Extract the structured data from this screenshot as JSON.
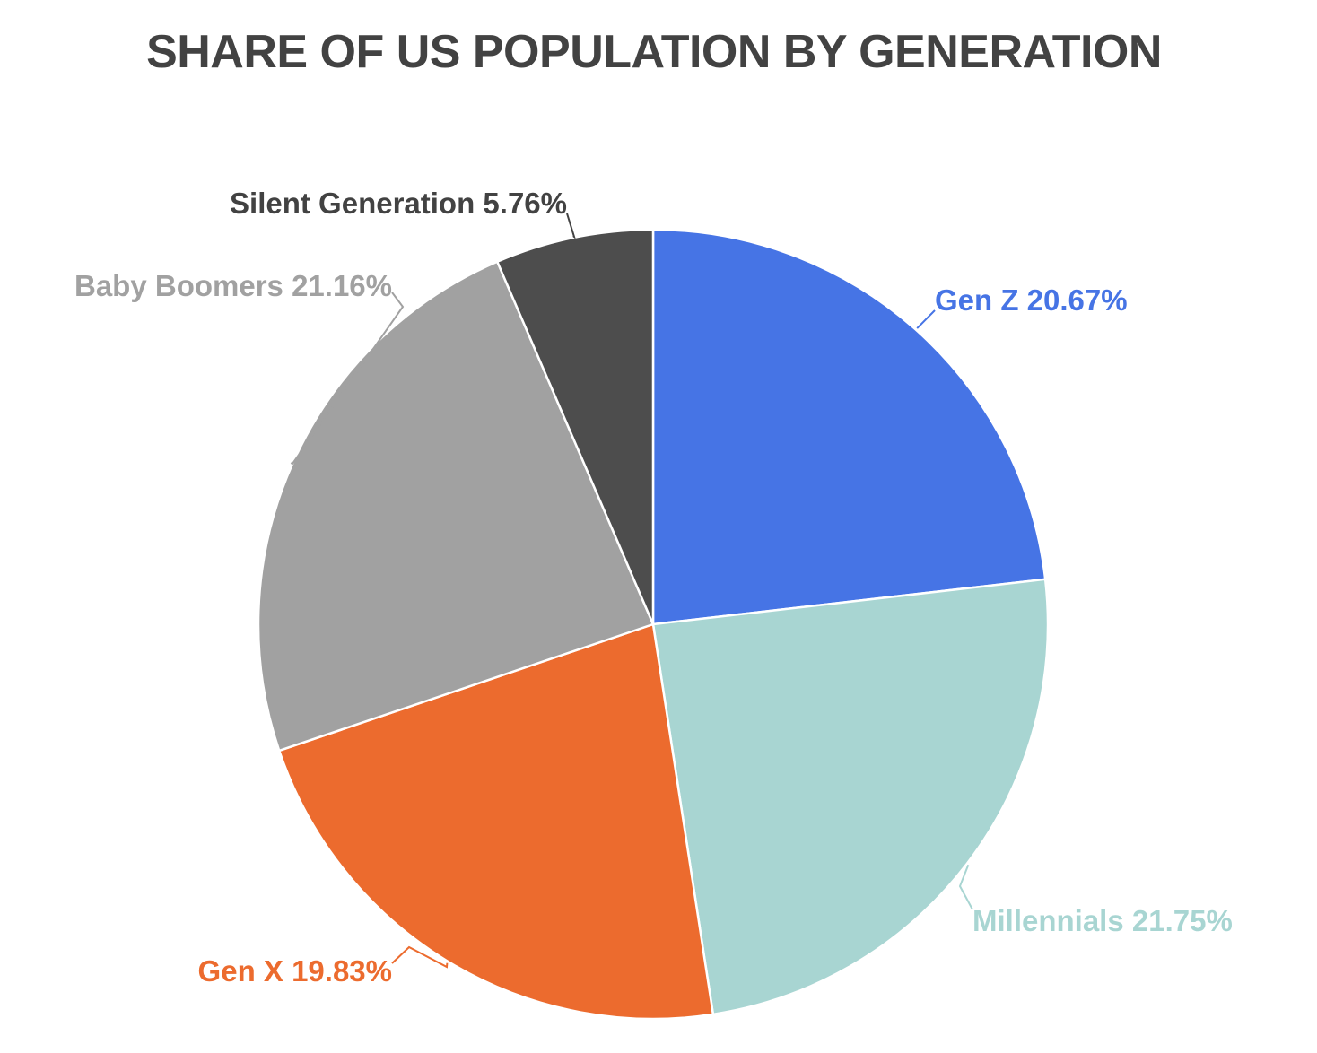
{
  "chart_data": {
    "type": "pie",
    "title": "SHARE OF US POPULATION BY GENERATION",
    "slices": [
      {
        "label": "Gen Z",
        "value": 20.67,
        "value_label": "20.67%",
        "color": "#4674E5",
        "label_color": "#4674E5"
      },
      {
        "label": "Millennials",
        "value": 21.75,
        "value_label": "21.75%",
        "color": "#A8D5D2",
        "label_color": "#A8D5D2"
      },
      {
        "label": "Gen X",
        "value": 19.83,
        "value_label": "19.83%",
        "color": "#EC6B2E",
        "label_color": "#EC6B2E"
      },
      {
        "label": "Baby Boomers",
        "value": 21.16,
        "value_label": "21.16%",
        "color": "#A1A1A1",
        "label_color": "#A1A1A1"
      },
      {
        "label": "Silent Generation",
        "value": 5.76,
        "value_label": "5.76%",
        "color": "#4D4D4D",
        "label_color": "#424242"
      }
    ]
  }
}
